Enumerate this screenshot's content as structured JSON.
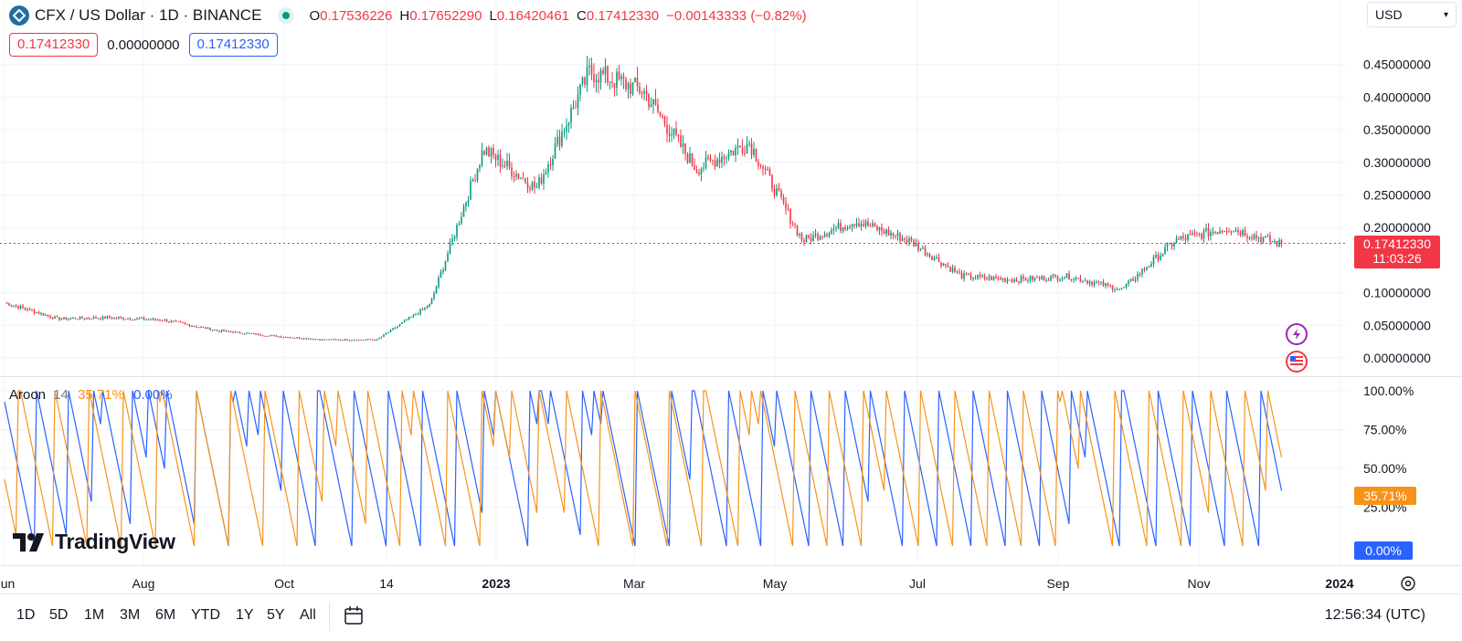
{
  "header": {
    "symbol_title": "CFX / US Dollar · 1D · BINANCE",
    "ohlc": [
      {
        "key": "O",
        "value": "0.17536226"
      },
      {
        "key": "H",
        "value": "0.17652290"
      },
      {
        "key": "L",
        "value": "0.16420461"
      },
      {
        "key": "C",
        "value": "0.17412330"
      },
      {
        "key": "",
        "value": "−0.00143333 (−0.82%)"
      }
    ],
    "box_red": "0.17412330",
    "box_mid": "0.00000000",
    "box_blue": "0.17412330",
    "currency": "USD",
    "colors": {
      "up": "#089981",
      "down": "#f23645",
      "aroon_up": "#f7931a",
      "aroon_down": "#2962ff"
    }
  },
  "chart_data": [
    {
      "type": "candlestick",
      "title": "CFX / US Dollar · 1D · BINANCE",
      "y_ticks": [
        "0.45000000",
        "0.40000000",
        "0.35000000",
        "0.30000000",
        "0.25000000",
        "0.20000000",
        "0.10000000",
        "0.05000000",
        "0.00000000"
      ],
      "ylim": [
        0,
        0.5
      ],
      "x_ticks": [
        "Jun",
        "Aug",
        "Oct",
        "14",
        "2023",
        "Mar",
        "May",
        "Jul",
        "Sep",
        "Nov",
        "2024"
      ],
      "current_price": "0.17412330",
      "countdown": "11:03:26",
      "approx_close_path": [
        [
          "Jun",
          0.085
        ],
        [
          "Jul",
          0.06
        ],
        [
          "Aug",
          0.062
        ],
        [
          "Sep",
          0.058
        ],
        [
          "Oct",
          0.042
        ],
        [
          "Nov",
          0.034
        ],
        [
          "Dec",
          0.028
        ],
        [
          "Jan",
          0.028
        ],
        [
          "Feb",
          0.082
        ],
        [
          "Feb end",
          0.32
        ],
        [
          "Mar",
          0.26
        ],
        [
          "Mar mid",
          0.44
        ],
        [
          "Apr",
          0.41
        ],
        [
          "May",
          0.29
        ],
        [
          "Jun",
          0.33
        ],
        [
          "Jun end",
          0.18
        ],
        [
          "Jul",
          0.21
        ],
        [
          "Aug",
          0.18
        ],
        [
          "Aug end",
          0.125
        ],
        [
          "Sep",
          0.12
        ],
        [
          "Oct",
          0.125
        ],
        [
          "Oct end",
          0.105
        ],
        [
          "Nov",
          0.18
        ],
        [
          "Dec",
          0.2
        ],
        [
          "Dec mid",
          0.174
        ]
      ],
      "grid": true
    },
    {
      "type": "line",
      "title": "Aroon 14",
      "series": [
        {
          "name": "Aroon Up",
          "value": "35.71%"
        },
        {
          "name": "Aroon Down",
          "value": "0.00%"
        }
      ],
      "y_ticks": [
        "100.00%",
        "75.00%",
        "50.00%",
        "25.00%"
      ],
      "ylim": [
        0,
        100
      ]
    }
  ],
  "aroon": {
    "name": "Aroon",
    "length": "14",
    "up": "35.71%",
    "down": "0.00%"
  },
  "price_tag": {
    "price": "0.17412330",
    "countdown": "11:03:26"
  },
  "aroon_tags": {
    "up": "35.71%",
    "down": "0.00%"
  },
  "logo": "TradingView",
  "timeframes": [
    "1D",
    "5D",
    "1M",
    "3M",
    "6M",
    "YTD",
    "1Y",
    "5Y",
    "All"
  ],
  "clock": "12:56:34 (UTC)"
}
